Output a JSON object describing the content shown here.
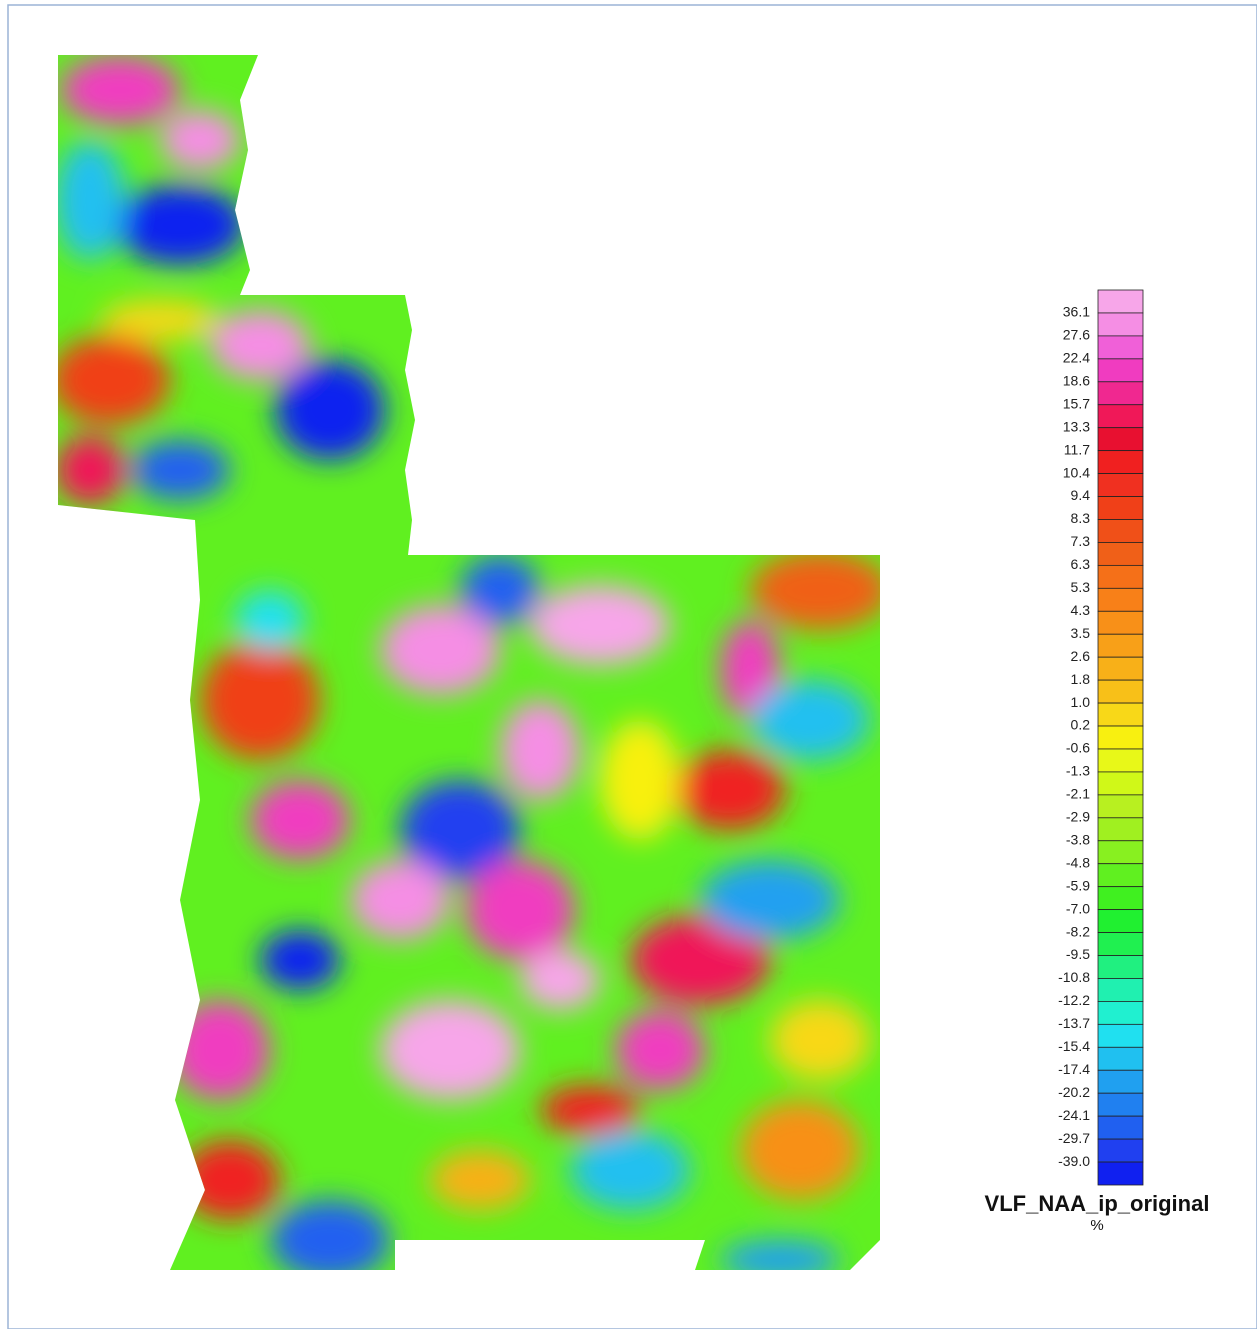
{
  "legend": {
    "title": "VLF_NAA_ip_original",
    "unit": "%",
    "labels": [
      "36.1",
      "27.6",
      "22.4",
      "18.6",
      "15.7",
      "13.3",
      "11.7",
      "10.4",
      "9.4",
      "8.3",
      "7.3",
      "6.3",
      "5.3",
      "4.3",
      "3.5",
      "2.6",
      "1.8",
      "1.0",
      "0.2",
      "-0.6",
      "-1.3",
      "-2.1",
      "-2.9",
      "-3.8",
      "-4.8",
      "-5.9",
      "-7.0",
      "-8.2",
      "-9.5",
      "-10.8",
      "-12.2",
      "-13.7",
      "-15.4",
      "-17.4",
      "-20.2",
      "-24.1",
      "-29.7",
      "-39.0"
    ],
    "colors": [
      "#f7a6e9",
      "#f58ee4",
      "#f060d8",
      "#f03cc0",
      "#f02890",
      "#f01858",
      "#e81030",
      "#f02020",
      "#f03020",
      "#f04018",
      "#f05018",
      "#f06018",
      "#f57018",
      "#f88018",
      "#f89018",
      "#f8a018",
      "#f8b018",
      "#f8c018",
      "#f8d818",
      "#f8f010",
      "#e8f818",
      "#d0f818",
      "#b8f020",
      "#a0f020",
      "#88f020",
      "#60f020",
      "#40f020",
      "#20f030",
      "#20f050",
      "#20f080",
      "#20f0b0",
      "#20f0d0",
      "#20e0f0",
      "#20c0f0",
      "#20a0f0",
      "#2080f0",
      "#2060f0",
      "#2040f0",
      "#1020f0"
    ]
  }
}
